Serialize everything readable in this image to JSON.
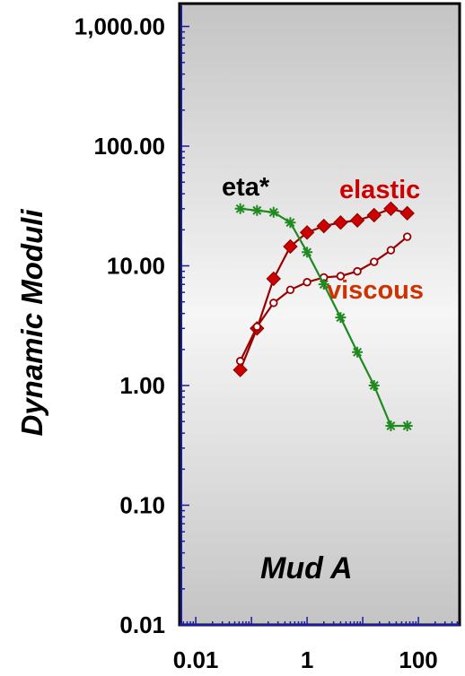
{
  "chart_data": {
    "type": "line",
    "title": "",
    "xlabel": "",
    "ylabel": "Dynamic Moduli",
    "x_scale": "log",
    "y_scale": "log",
    "xlim": [
      0.0055,
      550
    ],
    "ylim": [
      0.01,
      1500
    ],
    "x_ticks": [
      {
        "value": 0.01,
        "label": "0.01"
      },
      {
        "value": 1,
        "label": "1"
      },
      {
        "value": 100,
        "label": "100"
      }
    ],
    "y_ticks": [
      {
        "value": 0.01,
        "label": "0.01"
      },
      {
        "value": 0.1,
        "label": "0.10"
      },
      {
        "value": 1,
        "label": "1.00"
      },
      {
        "value": 10,
        "label": "10.00"
      },
      {
        "value": 100,
        "label": "100.00"
      },
      {
        "value": 1000,
        "label": "1,000.00"
      }
    ],
    "annotation": "Mud A",
    "grid": false,
    "series": [
      {
        "name": "elastic",
        "color": "#cc0000",
        "line_color": "#990000",
        "marker": "diamond",
        "x": [
          0.063,
          0.126,
          0.25,
          0.5,
          1.0,
          2.0,
          4.0,
          8.0,
          16.0,
          32.0,
          63.0
        ],
        "y": [
          1.35,
          3.0,
          7.8,
          14.5,
          19.0,
          21.5,
          23.0,
          24.0,
          26.5,
          30.0,
          27.5
        ]
      },
      {
        "name": "viscous",
        "color": "#990000",
        "line_color": "#990000",
        "marker": "circle",
        "x": [
          0.063,
          0.126,
          0.25,
          0.5,
          1.0,
          2.0,
          4.0,
          8.0,
          16.0,
          32.0,
          63.0
        ],
        "y": [
          1.6,
          3.1,
          4.9,
          6.3,
          7.3,
          8.0,
          8.2,
          9.0,
          10.8,
          13.5,
          17.5
        ]
      },
      {
        "name": "eta*",
        "color": "#1f8a1f",
        "line_color": "#1f8a1f",
        "marker": "star",
        "x": [
          0.063,
          0.126,
          0.25,
          0.5,
          1.0,
          2.0,
          4.0,
          8.0,
          16.0,
          32.0,
          63.0
        ],
        "y": [
          30.0,
          29.0,
          28.0,
          23.0,
          13.0,
          7.0,
          3.7,
          1.9,
          1.0,
          0.46,
          0.46
        ]
      }
    ],
    "series_labels": [
      {
        "series": "eta*",
        "text": "eta*",
        "color": "#000000"
      },
      {
        "series": "elastic",
        "text": "elastic",
        "color": "#cc0000"
      },
      {
        "series": "viscous",
        "text": "viscous",
        "color": "#cc3300"
      }
    ]
  }
}
